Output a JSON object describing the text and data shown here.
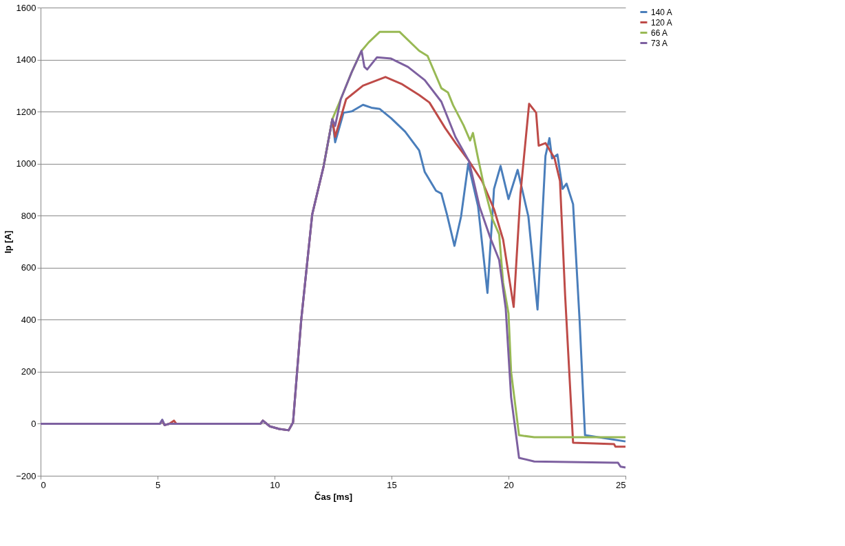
{
  "chart_data": {
    "type": "line",
    "xlabel": "Čas [ms]",
    "ylabel": "Ip [A]",
    "xlim": [
      0,
      25
    ],
    "ylim": [
      -200,
      1600
    ],
    "xticks": [
      0,
      5,
      10,
      15,
      20,
      25
    ],
    "yticks": [
      -200,
      0,
      200,
      400,
      600,
      800,
      1000,
      1200,
      1400,
      1600
    ],
    "grid": "y",
    "legend": "right",
    "marker": "none",
    "line_style": "solid",
    "series": [
      {
        "name": "140 A",
        "color": "#4a7ebb",
        "x": [
          0,
          5.1,
          5.2,
          5.3,
          5.5,
          9.4,
          9.5,
          9.8,
          10.2,
          10.6,
          10.79,
          11.14,
          11.61,
          12.1,
          12.47,
          12.59,
          12.95,
          13.3,
          13.78,
          14.14,
          14.5,
          14.98,
          15.58,
          16.18,
          16.42,
          16.9,
          17.13,
          17.37,
          17.69,
          17.97,
          18.28,
          18.7,
          19.1,
          19.38,
          19.66,
          20.0,
          20.39,
          20.85,
          21.24,
          21.58,
          21.75,
          21.86,
          22.09,
          22.31,
          22.48,
          22.76,
          23.04,
          23.27,
          25
        ],
        "values": [
          0,
          0,
          15,
          -5,
          0,
          0,
          12,
          -10,
          -20,
          -25,
          5,
          399,
          805,
          991,
          1171,
          1082,
          1196,
          1201,
          1226,
          1215,
          1210,
          1175,
          1123,
          1051,
          968,
          896,
          885,
          804,
          684,
          796,
          1000,
          835,
          503,
          903,
          991,
          864,
          976,
          796,
          439,
          1030,
          1098,
          1020,
          1035,
          903,
          923,
          844,
          395,
          -44,
          -68
        ]
      },
      {
        "name": "120 A",
        "color": "#be4b48",
        "x": [
          5.2,
          5.3,
          5.5,
          5.7,
          5.8,
          9.4,
          9.5,
          9.8,
          10.2,
          10.6,
          10.79,
          11.14,
          11.61,
          12.1,
          12.47,
          12.59,
          13.06,
          13.78,
          14.74,
          15.46,
          16.18,
          16.62,
          17.29,
          17.74,
          18.31,
          18.87,
          19.38,
          19.77,
          20.11,
          20.22,
          20.51,
          20.88,
          21.18,
          21.29,
          21.58,
          21.97,
          22.2,
          22.42,
          22.76,
          24.51,
          24.57,
          25
        ],
        "values": [
          10,
          -5,
          0,
          12,
          0,
          0,
          12,
          -10,
          -20,
          -25,
          5,
          399,
          805,
          991,
          1171,
          1103,
          1248,
          1300,
          1333,
          1305,
          1264,
          1235,
          1137,
          1079,
          1010,
          933,
          825,
          708,
          513,
          449,
          884,
          1230,
          1196,
          1069,
          1079,
          1020,
          933,
          493,
          -73,
          -78,
          -88,
          -88
        ]
      },
      {
        "name": "66 A",
        "color": "#98b954",
        "x": [
          12.1,
          12.47,
          12.83,
          13.3,
          13.72,
          14.02,
          14.5,
          15.34,
          16.18,
          16.54,
          17.13,
          17.41,
          17.63,
          18.08,
          18.36,
          18.48,
          18.7,
          18.98,
          19.32,
          19.6,
          19.77,
          20.0,
          20.11,
          20.45,
          21.1,
          25
        ],
        "values": [
          991,
          1171,
          1248,
          1352,
          1434,
          1466,
          1507,
          1507,
          1434,
          1414,
          1290,
          1274,
          1225,
          1147,
          1089,
          1118,
          1020,
          903,
          786,
          728,
          542,
          424,
          200,
          -44,
          -52,
          -52
        ]
      },
      {
        "name": "73 A",
        "color": "#7d60a0",
        "x": [
          0,
          5.1,
          5.2,
          5.3,
          5.5,
          9.4,
          9.5,
          9.8,
          10.2,
          10.6,
          10.79,
          11.14,
          11.61,
          12.1,
          12.47,
          12.59,
          12.83,
          13.3,
          13.72,
          13.84,
          13.96,
          14.38,
          14.98,
          15.7,
          16.42,
          17.13,
          17.73,
          18.31,
          18.76,
          19.21,
          19.6,
          19.88,
          20.11,
          20.45,
          21.1,
          24.51,
          24.68,
          24.79,
          25
        ],
        "values": [
          0,
          0,
          15,
          -5,
          0,
          0,
          12,
          -10,
          -20,
          -25,
          5,
          399,
          805,
          991,
          1171,
          1145,
          1248,
          1352,
          1434,
          1372,
          1362,
          1409,
          1404,
          1372,
          1321,
          1238,
          1103,
          1010,
          835,
          718,
          630,
          444,
          103,
          -131,
          -145,
          -150,
          -150,
          -165,
          -168
        ]
      }
    ]
  }
}
